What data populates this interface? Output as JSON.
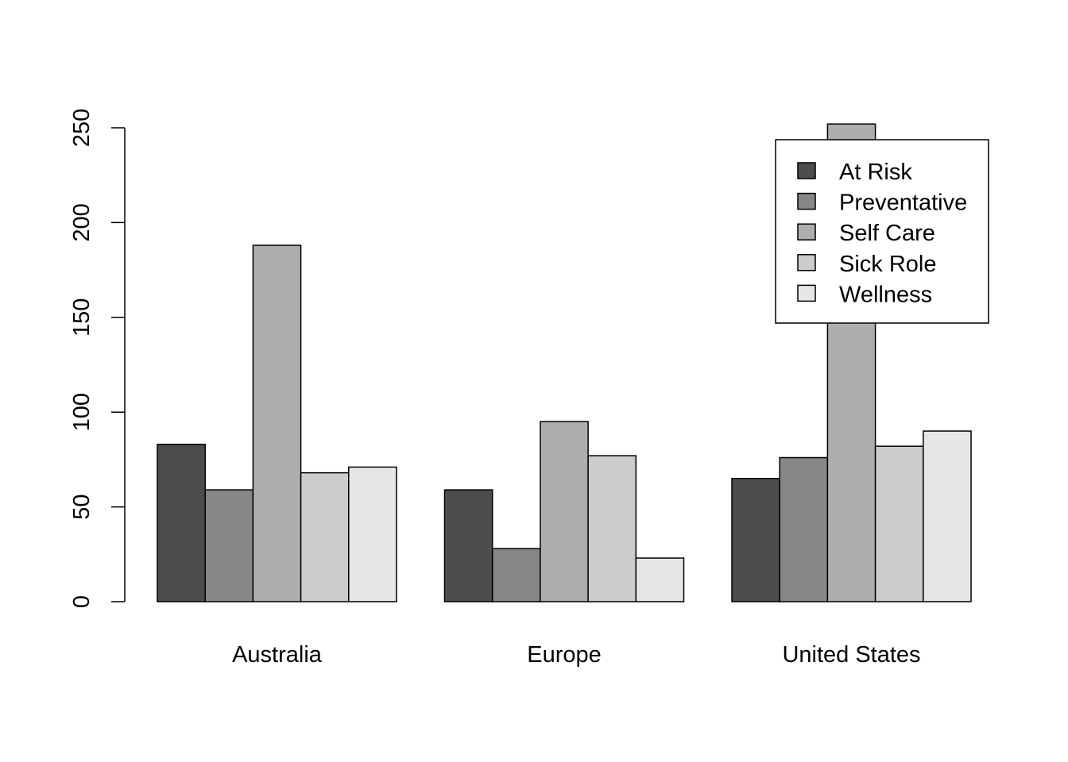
{
  "chart_data": {
    "type": "bar",
    "layout": "grouped",
    "title": "",
    "xlabel": "",
    "ylabel": "",
    "categories": [
      "Australia",
      "Europe",
      "United States"
    ],
    "series": [
      {
        "name": "At Risk",
        "values": [
          83,
          59,
          65
        ],
        "color": "#4d4d4d"
      },
      {
        "name": "Preventative",
        "values": [
          59,
          28,
          76
        ],
        "color": "#878787"
      },
      {
        "name": "Self Care",
        "values": [
          188,
          95,
          252
        ],
        "color": "#aeaeae"
      },
      {
        "name": "Sick Role",
        "values": [
          68,
          77,
          82
        ],
        "color": "#cccccc"
      },
      {
        "name": "Wellness",
        "values": [
          71,
          23,
          90
        ],
        "color": "#e6e6e6"
      }
    ],
    "ylim": [
      0,
      250
    ],
    "yticks": [
      0,
      50,
      100,
      150,
      200,
      250
    ],
    "ytick_labels": [
      "0",
      "50",
      "100",
      "150",
      "200",
      "250"
    ],
    "grid": false,
    "legend_position": "top-right"
  }
}
